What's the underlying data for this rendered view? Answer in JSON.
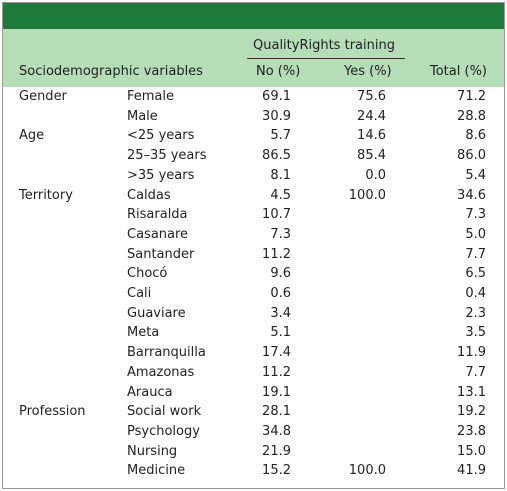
{
  "table": {
    "header": {
      "group": "QualityRights training",
      "columns": [
        "Sociodemographic variables",
        "No (%)",
        "Yes (%)",
        "Total (%)"
      ]
    },
    "rows": [
      [
        "Gender",
        "Female",
        "69.1",
        "75.6",
        "71.2"
      ],
      [
        null,
        "Male",
        "30.9",
        "24.4",
        "28.8"
      ],
      [
        "Age",
        "<25 years",
        "5.7",
        "14.6",
        "8.6"
      ],
      [
        null,
        "25–35 years",
        "86.5",
        "85.4",
        "86.0"
      ],
      [
        null,
        ">35 years",
        "8.1",
        "0.0",
        "5.4"
      ],
      [
        "Territory",
        "Caldas",
        "4.5",
        "100.0",
        "34.6"
      ],
      [
        null,
        "Risaralda",
        "10.7",
        null,
        "7.3"
      ],
      [
        null,
        "Casanare",
        "7.3",
        null,
        "5.0"
      ],
      [
        null,
        "Santander",
        "11.2",
        null,
        "7.7"
      ],
      [
        null,
        "Chocó",
        "9.6",
        null,
        "6.5"
      ],
      [
        null,
        "Cali",
        "0.6",
        null,
        "0.4"
      ],
      [
        null,
        "Guaviare",
        "3.4",
        null,
        "2.3"
      ],
      [
        null,
        "Meta",
        "5.1",
        null,
        "3.5"
      ],
      [
        null,
        "Barranquilla",
        "17.4",
        null,
        "11.9"
      ],
      [
        null,
        "Amazonas",
        "11.2",
        null,
        "7.7"
      ],
      [
        null,
        "Arauca",
        "19.1",
        null,
        "13.1"
      ],
      [
        "Profession",
        "Social work",
        "28.1",
        null,
        "19.2"
      ],
      [
        null,
        "Psychology",
        "34.8",
        null,
        "23.8"
      ],
      [
        null,
        "Nursing",
        "21.9",
        null,
        "15.0"
      ],
      [
        null,
        "Medicine",
        "15.2",
        "100.0",
        "41.9"
      ]
    ]
  }
}
